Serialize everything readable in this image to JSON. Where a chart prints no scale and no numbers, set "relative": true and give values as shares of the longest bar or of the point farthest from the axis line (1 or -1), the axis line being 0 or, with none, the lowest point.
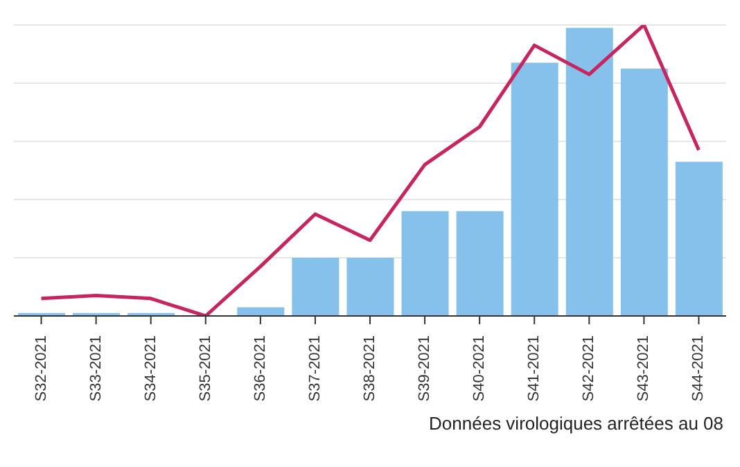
{
  "chart_data": {
    "type": "bar",
    "relative": true,
    "grid": "y",
    "legend": false,
    "categories": [
      "S32-2021",
      "S33-2021",
      "S34-2021",
      "S35-2021",
      "S36-2021",
      "S37-2021",
      "S38-2021",
      "S39-2021",
      "S40-2021",
      "S41-2021",
      "S42-2021",
      "S43-2021",
      "S44-2021"
    ],
    "series": [
      {
        "color": "#85c1ea",
        "values": [
          0.01,
          0.01,
          0.01,
          0,
          0.03,
          0.2,
          0.2,
          0.36,
          0.36,
          0.87,
          0.99,
          0.85,
          0.53
        ]
      },
      {
        "type": "line",
        "color": "#c8245f",
        "values": [
          0.06,
          0.07,
          0.06,
          0,
          0.17,
          0.35,
          0.26,
          0.52,
          0.65,
          0.93,
          0.83,
          1,
          0.57
        ]
      }
    ],
    "annotations": [
      "Données virologiques arrêtées au 08"
    ]
  }
}
